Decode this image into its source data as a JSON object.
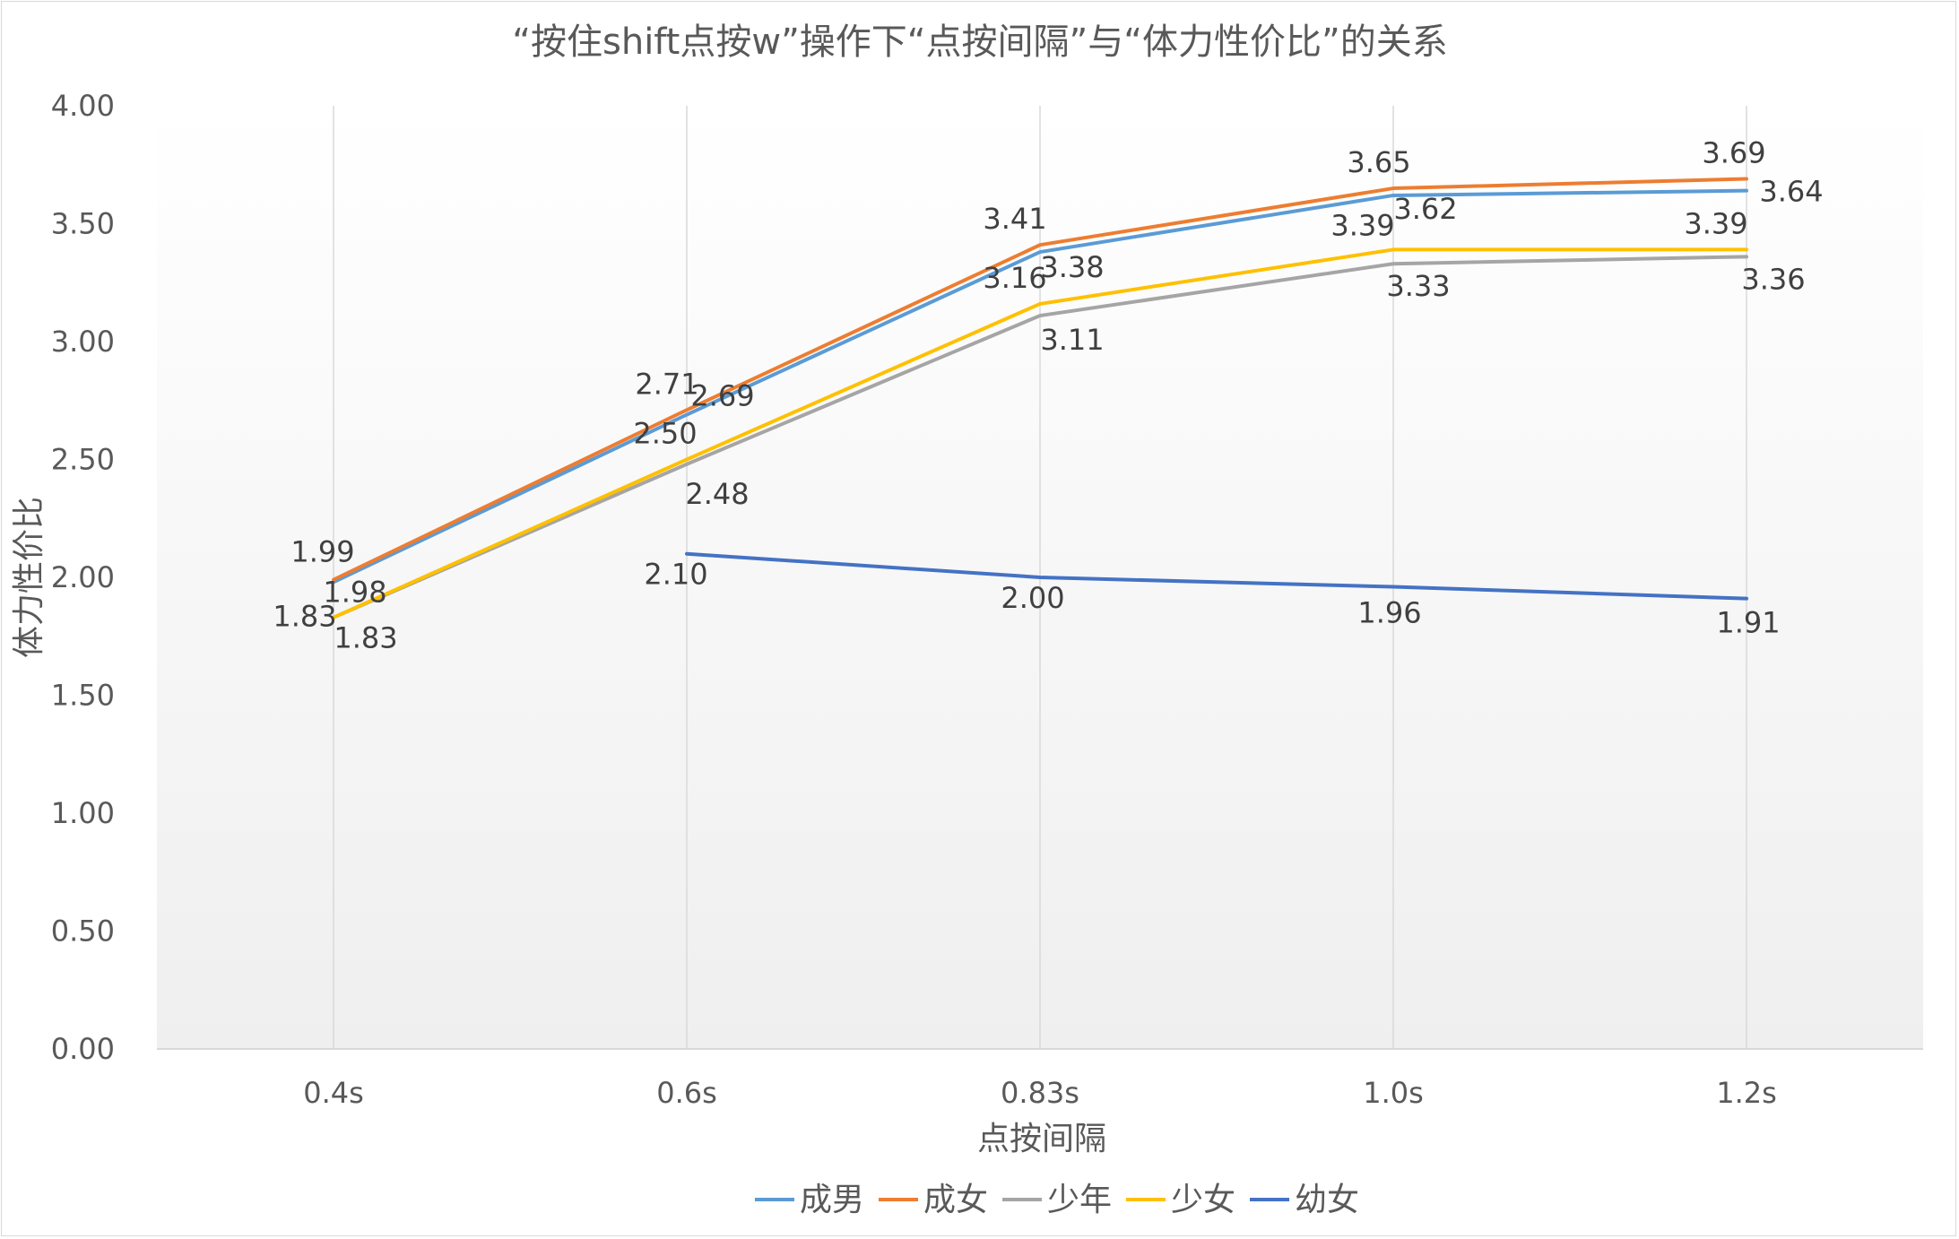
{
  "chart_data": {
    "type": "line",
    "title": "“按住shift点按w”操作下“点按间隔”与“体力性价比”的关系",
    "xlabel": "点按间隔",
    "ylabel": "体力性价比",
    "categories": [
      "0.4s",
      "0.6s",
      "0.83s",
      "1.0s",
      "1.2s"
    ],
    "ylim": [
      0,
      4
    ],
    "yticks": [
      "0.00",
      "0.50",
      "1.00",
      "1.50",
      "2.00",
      "2.50",
      "3.00",
      "3.50",
      "4.00"
    ],
    "grid": "vertical",
    "legend": "bottom",
    "series": [
      {
        "name": "成男",
        "color": "#5b9bd5",
        "values": [
          1.98,
          2.69,
          3.38,
          3.62,
          3.64
        ],
        "labels": [
          "1.98",
          "2.69",
          "3.38",
          "3.62",
          "3.64"
        ]
      },
      {
        "name": "成女",
        "color": "#ed7d31",
        "values": [
          1.99,
          2.71,
          3.41,
          3.65,
          3.69
        ],
        "labels": [
          "1.99",
          "2.71",
          "3.41",
          "3.65",
          "3.69"
        ]
      },
      {
        "name": "少年",
        "color": "#a5a5a5",
        "values": [
          1.83,
          2.48,
          3.11,
          3.33,
          3.36
        ],
        "labels": [
          "1.83",
          "2.48",
          "3.11",
          "3.33",
          "3.36"
        ]
      },
      {
        "name": "少女",
        "color": "#ffc000",
        "values": [
          1.83,
          2.5,
          3.16,
          3.39,
          3.39
        ],
        "labels": [
          "1.83",
          "2.50",
          "3.16",
          "3.39",
          "3.39"
        ]
      },
      {
        "name": "幼女",
        "color": "#4472c4",
        "values": [
          null,
          2.1,
          2.0,
          1.96,
          1.91
        ],
        "labels": [
          null,
          "2.10",
          "2.00",
          "1.96",
          "1.91"
        ]
      }
    ]
  }
}
